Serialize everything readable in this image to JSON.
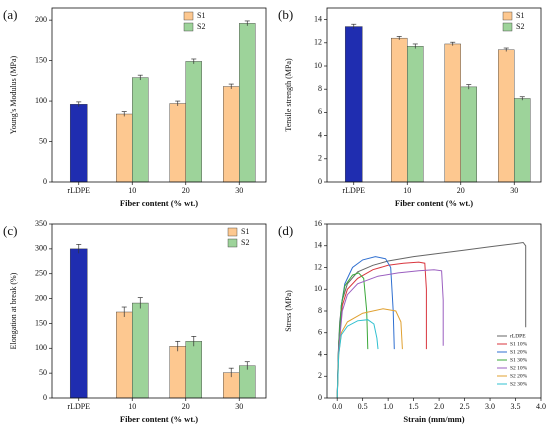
{
  "chart_data": [
    {
      "type": "bar",
      "panel_label": "(a)",
      "ylabel": "Young's Modulus (MPa)",
      "xlabel": "Fiber content (% wt.)",
      "categories": [
        "rLDPE",
        "10",
        "20",
        "30"
      ],
      "values": [
        96,
        null,
        null,
        null
      ],
      "errors": [
        3,
        null,
        null,
        null
      ],
      "color": "#1f2db0",
      "series": [
        {
          "name": "S1",
          "color": "#fdc890",
          "values": [
            null,
            84,
            97,
            118
          ],
          "errors": [
            null,
            3,
            3,
            3
          ]
        },
        {
          "name": "S2",
          "color": "#9dd39a",
          "values": [
            null,
            129,
            149,
            196
          ],
          "errors": [
            null,
            3,
            3,
            3
          ]
        }
      ],
      "ylim": [
        0,
        215
      ],
      "yticks": [
        0,
        50,
        100,
        150,
        200
      ],
      "legend": "upper-left"
    },
    {
      "type": "bar",
      "panel_label": "(b)",
      "ylabel": "Tensile strength (MPa)",
      "xlabel": "Fiber content (% wt.)",
      "categories": [
        "rLDPE",
        "10",
        "20",
        "30"
      ],
      "values": [
        13.4,
        null,
        null,
        null
      ],
      "errors": [
        0.2,
        null,
        null,
        null
      ],
      "color": "#1f2db0",
      "series": [
        {
          "name": "S1",
          "color": "#fdc890",
          "values": [
            null,
            12.4,
            11.9,
            11.4
          ],
          "errors": [
            null,
            0.15,
            0.15,
            0.15
          ]
        },
        {
          "name": "S2",
          "color": "#9dd39a",
          "values": [
            null,
            11.7,
            8.2,
            7.2
          ],
          "errors": [
            null,
            0.2,
            0.2,
            0.15
          ]
        }
      ],
      "ylim": [
        0,
        15
      ],
      "yticks": [
        0,
        2,
        4,
        6,
        8,
        10,
        12,
        14
      ],
      "legend": "upper-right"
    },
    {
      "type": "bar",
      "panel_label": "(c)",
      "ylabel": "Elongation at break (%)",
      "xlabel": "Fiber content (% wt.)",
      "categories": [
        "rLDPE",
        "10",
        "20",
        "30"
      ],
      "values": [
        300,
        null,
        null,
        null
      ],
      "errors": [
        9,
        null,
        null,
        null
      ],
      "color": "#1f2db0",
      "series": [
        {
          "name": "S1",
          "color": "#fdc890",
          "values": [
            null,
            173,
            104,
            51
          ],
          "errors": [
            null,
            10,
            10,
            9
          ]
        },
        {
          "name": "S2",
          "color": "#9dd39a",
          "values": [
            null,
            191,
            114,
            65
          ],
          "errors": [
            null,
            11,
            10,
            8
          ]
        }
      ],
      "ylim": [
        0,
        350
      ],
      "yticks": [
        0,
        50,
        100,
        150,
        200,
        250,
        300,
        350
      ],
      "legend": "upper-right"
    },
    {
      "type": "line",
      "panel_label": "(d)",
      "ylabel": "Stress (MPa)",
      "xlabel": "Strain (mm/mm)",
      "xlim": [
        -0.2,
        4.0
      ],
      "ylim": [
        0,
        16
      ],
      "xticks": [
        {
          "value": 0,
          "label": "0.0"
        },
        {
          "value": 0.5,
          "label": "0.5"
        },
        {
          "value": 1,
          "label": "1.0"
        },
        {
          "value": 1.5,
          "label": "1.5"
        },
        {
          "value": 2,
          "label": "2.0"
        },
        {
          "value": 2.5,
          "label": "2.5"
        },
        {
          "value": 3,
          "label": "3.0"
        },
        {
          "value": 3.5,
          "label": "3.5"
        },
        {
          "value": 4,
          "label": "4.0"
        }
      ],
      "yticks": [
        0,
        2,
        4,
        6,
        8,
        10,
        12,
        14,
        16
      ],
      "legend": "lower-right",
      "series": [
        {
          "name": "rLDPE",
          "color": "#666666",
          "x": [
            0,
            0.02,
            0.05,
            0.1,
            0.2,
            0.4,
            0.7,
            1.0,
            1.5,
            2.0,
            2.5,
            3.0,
            3.5,
            3.65,
            3.7,
            3.7
          ],
          "y": [
            0,
            4,
            7,
            9,
            10.5,
            11.6,
            12.2,
            12.6,
            13.0,
            13.3,
            13.6,
            13.9,
            14.2,
            14.3,
            14.0,
            6.5
          ]
        },
        {
          "name": "S1 10%",
          "color": "#d9363e",
          "x": [
            0,
            0.03,
            0.1,
            0.2,
            0.4,
            0.7,
            1.0,
            1.3,
            1.6,
            1.72,
            1.75,
            1.75
          ],
          "y": [
            0,
            5,
            8.5,
            10,
            11,
            11.8,
            12.2,
            12.4,
            12.5,
            12.4,
            10,
            4.5
          ]
        },
        {
          "name": "S1 20%",
          "color": "#2f6fd0",
          "x": [
            0,
            0.03,
            0.08,
            0.15,
            0.3,
            0.5,
            0.75,
            0.95,
            1.05,
            1.1,
            1.12
          ],
          "y": [
            0,
            5,
            8.5,
            10.5,
            12,
            12.7,
            13,
            12.8,
            12,
            8,
            4.5
          ]
        },
        {
          "name": "S1 30%",
          "color": "#3aa83a",
          "x": [
            0,
            0.03,
            0.08,
            0.15,
            0.3,
            0.42,
            0.52,
            0.58,
            0.6
          ],
          "y": [
            0,
            5,
            8.5,
            10.3,
            11.3,
            11.5,
            11,
            8,
            4.5
          ]
        },
        {
          "name": "S2 10%",
          "color": "#9b5fc0",
          "x": [
            0,
            0.03,
            0.1,
            0.2,
            0.4,
            0.8,
            1.2,
            1.6,
            1.9,
            2.05,
            2.08,
            2.08
          ],
          "y": [
            0,
            4.5,
            8,
            9.5,
            10.5,
            11.2,
            11.5,
            11.7,
            11.8,
            11.7,
            9,
            4.8
          ]
        },
        {
          "name": "S2 20%",
          "color": "#e0a030",
          "x": [
            0,
            0.03,
            0.08,
            0.2,
            0.5,
            0.9,
            1.15,
            1.25,
            1.28
          ],
          "y": [
            0,
            4,
            6,
            7,
            7.8,
            8.2,
            8.0,
            7,
            4.5
          ]
        },
        {
          "name": "S2 30%",
          "color": "#30c0d0",
          "x": [
            0,
            0.03,
            0.08,
            0.2,
            0.4,
            0.6,
            0.72,
            0.78,
            0.8
          ],
          "y": [
            0,
            4,
            5.8,
            6.6,
            7.1,
            7.2,
            6.8,
            5.5,
            4.5
          ]
        }
      ]
    }
  ]
}
